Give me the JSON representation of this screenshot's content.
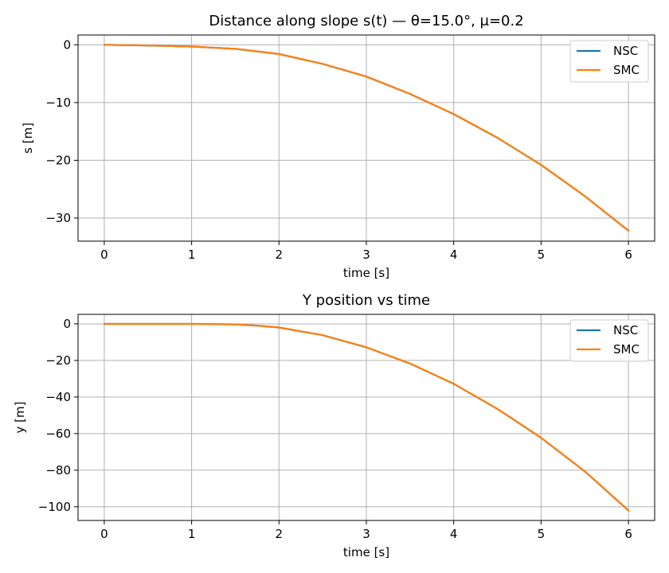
{
  "chart_data": [
    {
      "type": "line",
      "title": "Distance along slope s(t) — θ=15.0°, μ=0.2",
      "xlabel": "time [s]",
      "ylabel": "s [m]",
      "xlim": [
        -0.3,
        6.3
      ],
      "ylim": [
        -34.0,
        1.7
      ],
      "xticks": [
        0,
        1,
        2,
        3,
        4,
        5,
        6
      ],
      "xtick_labels": [
        "0",
        "1",
        "2",
        "3",
        "4",
        "5",
        "6"
      ],
      "yticks": [
        0,
        -10,
        -20,
        -30
      ],
      "ytick_labels": [
        "0",
        "−10",
        "−20",
        "−30"
      ],
      "grid": true,
      "legend_position": "upper right",
      "x": [
        0,
        0.5,
        1,
        1.5,
        2,
        2.5,
        3,
        3.5,
        4,
        4.5,
        5,
        5.5,
        6
      ],
      "series": [
        {
          "name": "NSC",
          "color": "#1f77b4",
          "values": [
            0,
            -0.1,
            -0.3,
            -0.7,
            -1.6,
            -3.3,
            -5.5,
            -8.5,
            -12.0,
            -16.1,
            -20.8,
            -26.2,
            -32.2
          ]
        },
        {
          "name": "SMC",
          "color": "#ff7f0e",
          "values": [
            0,
            -0.1,
            -0.3,
            -0.7,
            -1.6,
            -3.3,
            -5.5,
            -8.5,
            -12.0,
            -16.1,
            -20.8,
            -26.2,
            -32.2
          ]
        }
      ]
    },
    {
      "type": "line",
      "title": "Y position vs time",
      "xlabel": "time [s]",
      "ylabel": "y [m]",
      "xlim": [
        -0.3,
        6.3
      ],
      "ylim": [
        -107.5,
        5.2
      ],
      "xticks": [
        0,
        1,
        2,
        3,
        4,
        5,
        6
      ],
      "xtick_labels": [
        "0",
        "1",
        "2",
        "3",
        "4",
        "5",
        "6"
      ],
      "yticks": [
        0,
        -20,
        -40,
        -60,
        -80,
        -100
      ],
      "ytick_labels": [
        "0",
        "−20",
        "−40",
        "−60",
        "−80",
        "−100"
      ],
      "grid": true,
      "legend_position": "upper right",
      "x": [
        0,
        0.5,
        1,
        1.5,
        1.75,
        2,
        2.5,
        3,
        3.5,
        4,
        4.5,
        5,
        5.5,
        6
      ],
      "series": [
        {
          "name": "NSC",
          "color": "#1f77b4",
          "values": [
            0,
            0,
            0,
            -0.3,
            -1.0,
            -2.0,
            -6.2,
            -12.8,
            -21.7,
            -32.8,
            -46.5,
            -62.3,
            -80.6,
            -102.0
          ]
        },
        {
          "name": "SMC",
          "color": "#ff7f0e",
          "values": [
            0,
            0,
            0,
            -0.3,
            -1.0,
            -2.0,
            -6.2,
            -12.8,
            -21.7,
            -32.8,
            -46.5,
            -62.3,
            -80.6,
            -102.0
          ]
        }
      ]
    }
  ]
}
